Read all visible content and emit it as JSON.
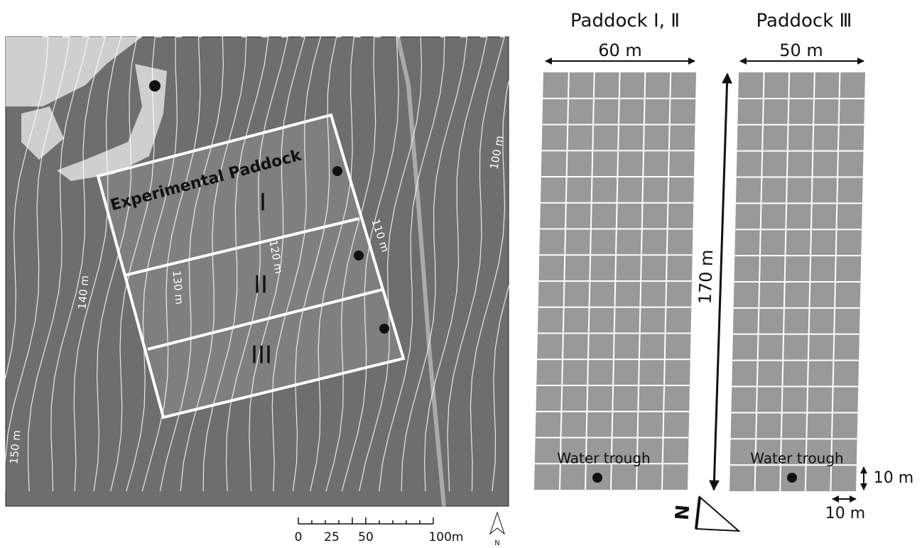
{
  "map": {
    "title": "Experimental Paddock",
    "paddock_labels": [
      "I",
      "II",
      "III"
    ],
    "contour_labels": [
      "100 m",
      "110 m",
      "120 m",
      "130 m",
      "140 m",
      "150 m"
    ],
    "scale_bar": [
      "0",
      "25",
      "50",
      "100m"
    ],
    "north": "N"
  },
  "diagram": {
    "paddock_1_2": {
      "title": "Paddock Ⅰ, Ⅱ",
      "width": "60 m",
      "trough": "Water trough"
    },
    "paddock_3": {
      "title": "Paddock Ⅲ",
      "width": "50 m",
      "trough": "Water trough"
    },
    "length": "170 m",
    "cell_height": "10 m",
    "cell_width": "10 m",
    "north": "N"
  }
}
